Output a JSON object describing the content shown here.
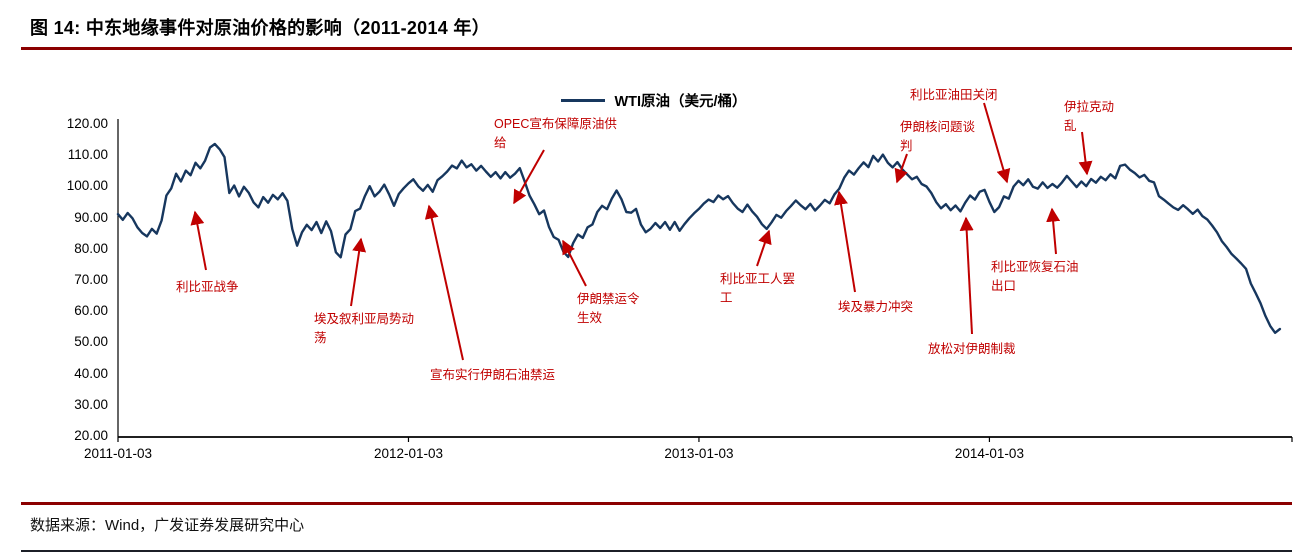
{
  "figure": {
    "title": "图 14:  中东地缘事件对原油价格的影响（2011-2014 年）",
    "source": "数据来源：Wind，广发证券发展研究中心"
  },
  "colors": {
    "line": "#17375E",
    "annotation": "#C00000",
    "rule": "#8B0000",
    "axis": "#000000"
  },
  "chart_data": {
    "type": "line",
    "title": "中东地缘事件对原油价格的影响（2011-2014 年）",
    "legend": [
      "WTI原油（美元/桶）"
    ],
    "xlabel": "",
    "ylabel": "",
    "x_unit": "months since 2011-01",
    "xlim": [
      0,
      48.5
    ],
    "ylim": [
      20,
      120
    ],
    "grid": false,
    "legend_position": "top-center",
    "y_ticks": [
      {
        "v": 120,
        "label": "120.00"
      },
      {
        "v": 110,
        "label": "110.00"
      },
      {
        "v": 100,
        "label": "100.00"
      },
      {
        "v": 90,
        "label": "90.00"
      },
      {
        "v": 80,
        "label": "80.00"
      },
      {
        "v": 70,
        "label": "70.00"
      },
      {
        "v": 60,
        "label": "60.00"
      },
      {
        "v": 50,
        "label": "50.00"
      },
      {
        "v": 40,
        "label": "40.00"
      },
      {
        "v": 30,
        "label": "30.00"
      },
      {
        "v": 20,
        "label": "20.00"
      }
    ],
    "x_ticks": [
      {
        "m": 0,
        "label": "2011-01-03"
      },
      {
        "m": 12,
        "label": "2012-01-03"
      },
      {
        "m": 24,
        "label": "2013-01-03"
      },
      {
        "m": 36,
        "label": "2014-01-03"
      }
    ],
    "series": [
      {
        "name": "WTI原油（美元/桶）",
        "points": [
          [
            0,
            91.4
          ],
          [
            0.2,
            89.6
          ],
          [
            0.4,
            91.8
          ],
          [
            0.6,
            90.1
          ],
          [
            0.8,
            87.2
          ],
          [
            1,
            85.4
          ],
          [
            1.2,
            84.3
          ],
          [
            1.4,
            86.7
          ],
          [
            1.6,
            85.2
          ],
          [
            1.8,
            89.4
          ],
          [
            2,
            97.4
          ],
          [
            2.2,
            99.7
          ],
          [
            2.4,
            104.4
          ],
          [
            2.6,
            101.9
          ],
          [
            2.8,
            105.4
          ],
          [
            3,
            103.9
          ],
          [
            3.2,
            107.9
          ],
          [
            3.4,
            106.1
          ],
          [
            3.6,
            108.6
          ],
          [
            3.8,
            112.8
          ],
          [
            4,
            113.9
          ],
          [
            4.2,
            112.2
          ],
          [
            4.4,
            109.7
          ],
          [
            4.6,
            98.2
          ],
          [
            4.8,
            100.6
          ],
          [
            5,
            97.1
          ],
          [
            5.2,
            100.2
          ],
          [
            5.4,
            98.3
          ],
          [
            5.6,
            95.2
          ],
          [
            5.8,
            93.6
          ],
          [
            6,
            96.9
          ],
          [
            6.2,
            95.1
          ],
          [
            6.4,
            97.6
          ],
          [
            6.6,
            96.2
          ],
          [
            6.8,
            98.1
          ],
          [
            7,
            95.7
          ],
          [
            7.2,
            86.6
          ],
          [
            7.4,
            81.3
          ],
          [
            7.6,
            85.6
          ],
          [
            7.8,
            88
          ],
          [
            8,
            86.3
          ],
          [
            8.2,
            88.9
          ],
          [
            8.4,
            85.4
          ],
          [
            8.6,
            89.1
          ],
          [
            8.8,
            86
          ],
          [
            9,
            79.2
          ],
          [
            9.2,
            77.6
          ],
          [
            9.4,
            84.9
          ],
          [
            9.6,
            86.6
          ],
          [
            9.8,
            92.4
          ],
          [
            10,
            93.2
          ],
          [
            10.2,
            97.2
          ],
          [
            10.4,
            100.4
          ],
          [
            10.6,
            97.1
          ],
          [
            10.8,
            98.6
          ],
          [
            11,
            100.9
          ],
          [
            11.2,
            97.8
          ],
          [
            11.4,
            94.1
          ],
          [
            11.6,
            97.9
          ],
          [
            11.8,
            99.7
          ],
          [
            12,
            101.3
          ],
          [
            12.2,
            102.6
          ],
          [
            12.4,
            100.4
          ],
          [
            12.6,
            98.9
          ],
          [
            12.8,
            100.8
          ],
          [
            13,
            98.6
          ],
          [
            13.2,
            102.3
          ],
          [
            13.4,
            103.6
          ],
          [
            13.6,
            105.1
          ],
          [
            13.8,
            107
          ],
          [
            14,
            106.1
          ],
          [
            14.2,
            108.6
          ],
          [
            14.4,
            106.4
          ],
          [
            14.6,
            107.4
          ],
          [
            14.8,
            105.4
          ],
          [
            15,
            106.9
          ],
          [
            15.2,
            105.1
          ],
          [
            15.4,
            103.4
          ],
          [
            15.6,
            104.9
          ],
          [
            15.8,
            102.9
          ],
          [
            16,
            104.9
          ],
          [
            16.2,
            103.1
          ],
          [
            16.4,
            104.4
          ],
          [
            16.6,
            106.2
          ],
          [
            16.8,
            101.9
          ],
          [
            17,
            97.4
          ],
          [
            17.2,
            94.6
          ],
          [
            17.4,
            91.4
          ],
          [
            17.6,
            92.6
          ],
          [
            17.8,
            87.4
          ],
          [
            18,
            84.1
          ],
          [
            18.2,
            83.2
          ],
          [
            18.4,
            79.4
          ],
          [
            18.6,
            77.7
          ],
          [
            18.8,
            82.1
          ],
          [
            19,
            84.9
          ],
          [
            19.2,
            83.8
          ],
          [
            19.4,
            87.2
          ],
          [
            19.6,
            88.1
          ],
          [
            19.8,
            92.1
          ],
          [
            20,
            94.1
          ],
          [
            20.2,
            93
          ],
          [
            20.4,
            96.4
          ],
          [
            20.6,
            99
          ],
          [
            20.8,
            96.2
          ],
          [
            21,
            92.1
          ],
          [
            21.2,
            91.9
          ],
          [
            21.4,
            93.1
          ],
          [
            21.6,
            88.1
          ],
          [
            21.8,
            85.6
          ],
          [
            22,
            86.7
          ],
          [
            22.2,
            88.6
          ],
          [
            22.4,
            87
          ],
          [
            22.6,
            88.9
          ],
          [
            22.8,
            86.4
          ],
          [
            23,
            88.9
          ],
          [
            23.2,
            86.1
          ],
          [
            23.4,
            88.2
          ],
          [
            23.6,
            90.1
          ],
          [
            23.8,
            91.7
          ],
          [
            24,
            93.1
          ],
          [
            24.2,
            94.8
          ],
          [
            24.4,
            96.1
          ],
          [
            24.6,
            95.3
          ],
          [
            24.8,
            97.4
          ],
          [
            25,
            96.2
          ],
          [
            25.2,
            97.2
          ],
          [
            25.4,
            95
          ],
          [
            25.6,
            93.2
          ],
          [
            25.8,
            92.1
          ],
          [
            26,
            94.5
          ],
          [
            26.2,
            92.3
          ],
          [
            26.4,
            90.6
          ],
          [
            26.6,
            88.2
          ],
          [
            26.8,
            86.7
          ],
          [
            27,
            88.8
          ],
          [
            27.2,
            91.2
          ],
          [
            27.4,
            90.3
          ],
          [
            27.6,
            92.4
          ],
          [
            27.8,
            94
          ],
          [
            28,
            95.8
          ],
          [
            28.2,
            94.3
          ],
          [
            28.4,
            93
          ],
          [
            28.6,
            94.7
          ],
          [
            28.8,
            92.6
          ],
          [
            29,
            94.2
          ],
          [
            29.2,
            96
          ],
          [
            29.4,
            94.9
          ],
          [
            29.6,
            97.8
          ],
          [
            29.8,
            99.6
          ],
          [
            30,
            103.1
          ],
          [
            30.2,
            105.4
          ],
          [
            30.4,
            104.1
          ],
          [
            30.6,
            106.2
          ],
          [
            30.8,
            108
          ],
          [
            31,
            106.5
          ],
          [
            31.2,
            110.1
          ],
          [
            31.4,
            108.3
          ],
          [
            31.6,
            110.5
          ],
          [
            31.8,
            107.9
          ],
          [
            32,
            106.4
          ],
          [
            32.2,
            108.1
          ],
          [
            32.4,
            105.8
          ],
          [
            32.6,
            104.2
          ],
          [
            32.8,
            102.6
          ],
          [
            33,
            103.4
          ],
          [
            33.2,
            101.1
          ],
          [
            33.4,
            100.3
          ],
          [
            33.6,
            98.2
          ],
          [
            33.8,
            95.3
          ],
          [
            34,
            93.3
          ],
          [
            34.2,
            94.6
          ],
          [
            34.4,
            92.7
          ],
          [
            34.6,
            94.2
          ],
          [
            34.8,
            92.3
          ],
          [
            35,
            95.1
          ],
          [
            35.2,
            97.4
          ],
          [
            35.4,
            96.1
          ],
          [
            35.6,
            98.6
          ],
          [
            35.8,
            99.2
          ],
          [
            36,
            95.4
          ],
          [
            36.2,
            92.1
          ],
          [
            36.4,
            93.7
          ],
          [
            36.6,
            97.1
          ],
          [
            36.8,
            96.4
          ],
          [
            37,
            100.3
          ],
          [
            37.2,
            102.1
          ],
          [
            37.4,
            100.7
          ],
          [
            37.6,
            102.6
          ],
          [
            37.8,
            100.2
          ],
          [
            38,
            99.6
          ],
          [
            38.2,
            101.6
          ],
          [
            38.4,
            99.8
          ],
          [
            38.6,
            101.1
          ],
          [
            38.8,
            99.9
          ],
          [
            39,
            101.6
          ],
          [
            39.2,
            103.7
          ],
          [
            39.4,
            101.9
          ],
          [
            39.6,
            100.1
          ],
          [
            39.8,
            101.9
          ],
          [
            40,
            100.4
          ],
          [
            40.2,
            102.7
          ],
          [
            40.4,
            101.5
          ],
          [
            40.6,
            103.4
          ],
          [
            40.8,
            102.3
          ],
          [
            41,
            104.2
          ],
          [
            41.2,
            102.9
          ],
          [
            41.4,
            106.9
          ],
          [
            41.6,
            107.3
          ],
          [
            41.8,
            105.7
          ],
          [
            42,
            104.6
          ],
          [
            42.2,
            103.2
          ],
          [
            42.4,
            104
          ],
          [
            42.6,
            102.1
          ],
          [
            42.8,
            101.6
          ],
          [
            43,
            97.2
          ],
          [
            43.2,
            96.1
          ],
          [
            43.4,
            94.8
          ],
          [
            43.6,
            93.6
          ],
          [
            43.8,
            92.8
          ],
          [
            44,
            94.3
          ],
          [
            44.2,
            93
          ],
          [
            44.4,
            91.5
          ],
          [
            44.6,
            92.9
          ],
          [
            44.8,
            90.8
          ],
          [
            45,
            89.7
          ],
          [
            45.2,
            87.8
          ],
          [
            45.4,
            85.6
          ],
          [
            45.6,
            82.8
          ],
          [
            45.8,
            80.9
          ],
          [
            46,
            78.7
          ],
          [
            46.2,
            77.2
          ],
          [
            46.4,
            75.6
          ],
          [
            46.6,
            73.9
          ],
          [
            46.8,
            69.2
          ],
          [
            47,
            66.1
          ],
          [
            47.2,
            62.9
          ],
          [
            47.4,
            58.8
          ],
          [
            47.6,
            55.6
          ],
          [
            47.8,
            53.4
          ],
          [
            48,
            54.6
          ]
        ]
      }
    ],
    "annotations": [
      {
        "lines": [
          "利比亚战争"
        ],
        "tx": 176,
        "ty": 278,
        "arrow": [
          206,
          270,
          195,
          212
        ]
      },
      {
        "lines": [
          "埃及叙利亚局势动",
          "荡"
        ],
        "tx": 314,
        "ty": 310,
        "arrow": [
          351,
          306,
          361,
          239
        ]
      },
      {
        "lines": [
          "宣布实行伊朗石油禁运"
        ],
        "tx": 430,
        "ty": 366,
        "arrow": [
          463,
          360,
          429,
          206
        ]
      },
      {
        "lines": [
          "OPEC宣布保障原油供",
          "给"
        ],
        "tx": 494,
        "ty": 115,
        "arrow": [
          544,
          150,
          514,
          203
        ]
      },
      {
        "lines": [
          "伊朗禁运令",
          "生效"
        ],
        "tx": 577,
        "ty": 290,
        "arrow": [
          586,
          286,
          563,
          241
        ]
      },
      {
        "lines": [
          "利比亚工人罢",
          "工"
        ],
        "tx": 720,
        "ty": 270,
        "arrow": [
          757,
          266,
          769,
          231
        ]
      },
      {
        "lines": [
          "埃及暴力冲突"
        ],
        "tx": 838,
        "ty": 298,
        "arrow": [
          855,
          292,
          839,
          192
        ]
      },
      {
        "lines": [
          "伊朗核问题谈",
          "判"
        ],
        "tx": 900,
        "ty": 118,
        "arrow": [
          907,
          154,
          897,
          182
        ]
      },
      {
        "lines": [
          "利比亚油田关闭"
        ],
        "tx": 910,
        "ty": 86,
        "arrow": [
          984,
          103,
          1007,
          182
        ]
      },
      {
        "lines": [
          "放松对伊朗制裁"
        ],
        "tx": 928,
        "ty": 340,
        "arrow": [
          972,
          334,
          966,
          218
        ]
      },
      {
        "lines": [
          "利比亚恢复石油",
          "出口"
        ],
        "tx": 991,
        "ty": 258,
        "arrow": [
          1056,
          254,
          1052,
          209
        ]
      },
      {
        "lines": [
          "伊拉克动",
          "乱"
        ],
        "tx": 1064,
        "ty": 98,
        "arrow": [
          1082,
          132,
          1087,
          174
        ]
      }
    ]
  }
}
